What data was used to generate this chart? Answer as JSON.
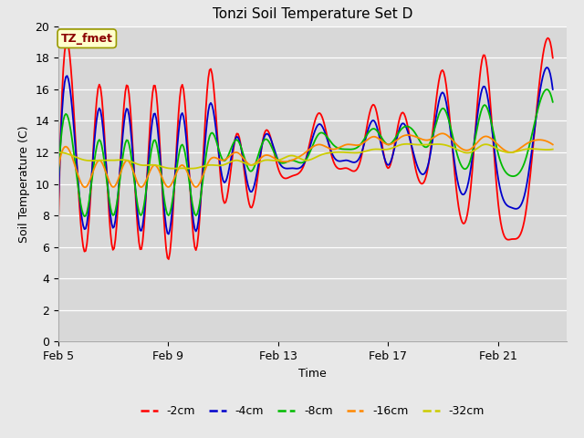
{
  "title": "Tonzi Soil Temperature Set D",
  "xlabel": "Time",
  "ylabel": "Soil Temperature (C)",
  "annotation": "TZ_fmet",
  "ylim": [
    0,
    20
  ],
  "yticks": [
    0,
    2,
    4,
    6,
    8,
    10,
    12,
    14,
    16,
    18,
    20
  ],
  "xtick_labels": [
    "Feb 5",
    "Feb 9",
    "Feb 13",
    "Feb 17",
    "Feb 21"
  ],
  "xtick_positions": [
    0,
    4,
    8,
    12,
    16
  ],
  "xlim": [
    0,
    18.5
  ],
  "line_colors": [
    "#ff0000",
    "#0000cc",
    "#00bb00",
    "#ff8800",
    "#cccc00"
  ],
  "line_labels": [
    "-2cm",
    "-4cm",
    "-8cm",
    "-16cm",
    "-32cm"
  ],
  "bg_outer": "#e8e8e8",
  "bg_plot": "#d8d8d8",
  "grid_color": "#ffffff",
  "t": [
    0.0,
    0.5,
    1.0,
    1.5,
    2.0,
    2.5,
    3.0,
    3.5,
    4.0,
    4.5,
    5.0,
    5.5,
    6.0,
    6.5,
    7.0,
    7.5,
    8.0,
    8.5,
    9.0,
    9.5,
    10.0,
    10.5,
    11.0,
    11.5,
    12.0,
    12.5,
    13.0,
    13.5,
    14.0,
    14.5,
    15.0,
    15.5,
    16.0,
    16.5,
    17.0,
    17.5,
    18.0
  ],
  "s2": [
    7.5,
    16.3,
    5.8,
    16.3,
    5.8,
    16.3,
    5.8,
    16.3,
    5.2,
    16.3,
    5.8,
    17.2,
    9.0,
    13.2,
    8.5,
    13.2,
    11.0,
    10.5,
    11.5,
    14.5,
    11.5,
    11.0,
    11.5,
    15.0,
    11.0,
    14.5,
    11.0,
    11.5,
    17.2,
    9.5,
    9.5,
    18.2,
    9.0,
    6.5,
    8.0,
    16.2,
    18.0
  ],
  "s4": [
    8.8,
    14.8,
    7.2,
    14.8,
    7.2,
    14.8,
    7.0,
    14.5,
    6.8,
    14.5,
    7.0,
    15.0,
    10.2,
    13.0,
    9.5,
    13.0,
    11.5,
    11.0,
    11.5,
    13.8,
    11.8,
    11.5,
    11.8,
    14.0,
    11.2,
    13.8,
    11.5,
    11.5,
    15.8,
    10.5,
    10.8,
    16.2,
    10.5,
    8.5,
    9.5,
    15.5,
    16.0
  ],
  "s8": [
    10.5,
    12.8,
    8.0,
    12.8,
    8.0,
    12.8,
    8.0,
    12.8,
    8.0,
    12.5,
    8.0,
    13.0,
    11.5,
    12.8,
    10.8,
    12.8,
    11.5,
    11.5,
    11.5,
    13.2,
    12.5,
    12.2,
    12.5,
    13.5,
    12.5,
    13.5,
    13.2,
    12.5,
    14.8,
    12.0,
    11.5,
    15.0,
    12.0,
    10.5,
    11.5,
    15.0,
    15.2
  ],
  "s16": [
    11.0,
    11.7,
    9.8,
    11.5,
    9.8,
    11.5,
    9.8,
    11.2,
    9.8,
    11.2,
    9.8,
    11.5,
    11.5,
    12.0,
    11.2,
    11.8,
    11.5,
    11.5,
    12.0,
    12.5,
    12.2,
    12.5,
    12.5,
    13.0,
    12.5,
    13.0,
    13.0,
    12.8,
    13.2,
    12.5,
    12.2,
    13.0,
    12.5,
    12.0,
    12.5,
    12.8,
    12.5
  ],
  "s32": [
    12.0,
    11.8,
    11.5,
    11.5,
    11.5,
    11.5,
    11.2,
    11.2,
    11.0,
    11.0,
    11.0,
    11.2,
    11.2,
    11.5,
    11.2,
    11.5,
    11.5,
    11.8,
    11.5,
    11.8,
    12.0,
    12.0,
    12.0,
    12.2,
    12.2,
    12.5,
    12.5,
    12.5,
    12.5,
    12.2,
    12.0,
    12.5,
    12.2,
    12.0,
    12.2,
    12.2,
    12.2
  ]
}
